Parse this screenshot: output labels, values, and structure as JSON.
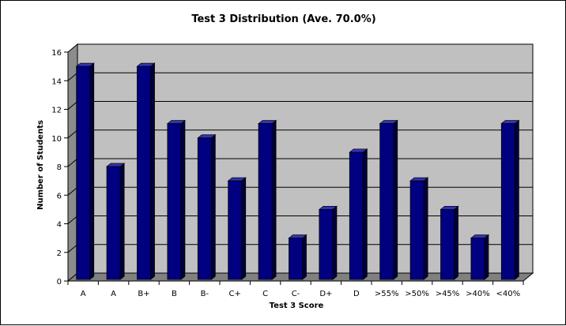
{
  "chart_data": {
    "type": "bar",
    "title": "Test 3 Distribution (Ave. 70.0%)",
    "xlabel": "Test 3 Score",
    "ylabel": "Number of Students",
    "categories": [
      "A",
      "A",
      "B+",
      "B",
      "B-",
      "C+",
      "C",
      "C-",
      "D+",
      "D",
      ">55%",
      ">50%",
      ">45%",
      ">40%",
      "<40%"
    ],
    "values": [
      15,
      8,
      15,
      11,
      10,
      7,
      11,
      3,
      5,
      9,
      11,
      7,
      5,
      3,
      11
    ],
    "ylim": [
      0,
      16
    ],
    "yticks": [
      0,
      2,
      4,
      6,
      8,
      10,
      12,
      14,
      16
    ],
    "grid": true,
    "legend": "none",
    "colors": {
      "bar_front": "#000080",
      "bar_side": "#00003A",
      "bar_top": "#3333B8",
      "plot_back": "#C0C0C0",
      "plot_floor": "#808080",
      "plot_wall": "#8C8C8C",
      "grid": "#000000"
    }
  }
}
